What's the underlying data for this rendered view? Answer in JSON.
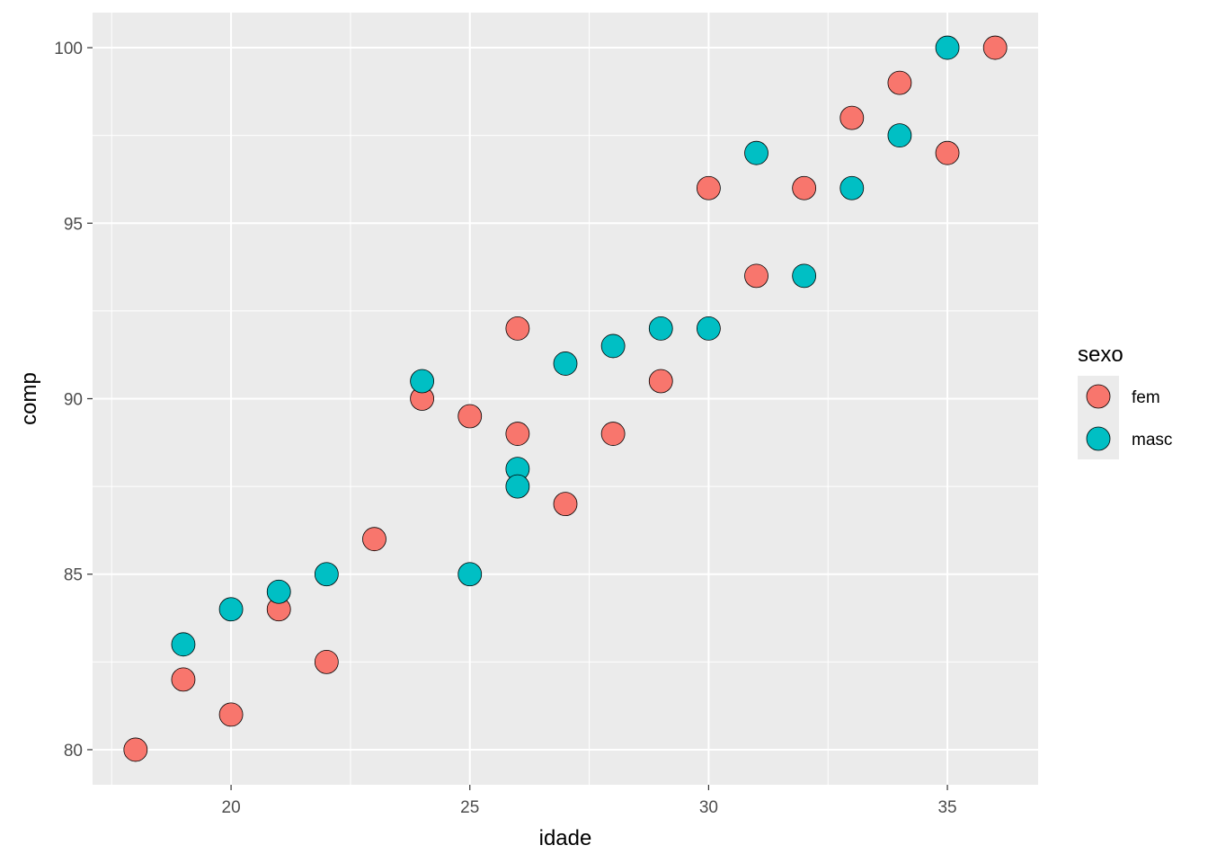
{
  "chart_data": {
    "type": "scatter",
    "title": "",
    "xlabel": "idade",
    "ylabel": "comp",
    "xlim": [
      17.1,
      36.9
    ],
    "ylim": [
      79,
      101
    ],
    "x_ticks": [
      20,
      25,
      30,
      35
    ],
    "y_ticks": [
      80,
      85,
      90,
      95,
      100
    ],
    "x_tick_labels": [
      "20",
      "25",
      "30",
      "35"
    ],
    "y_tick_labels": [
      "80",
      "85",
      "90",
      "95",
      "100"
    ],
    "grid": true,
    "legend": {
      "title": "sexo",
      "placement": "right"
    },
    "series": [
      {
        "name": "fem",
        "color": "#F8766D",
        "points": [
          {
            "x": 18,
            "y": 80
          },
          {
            "x": 19,
            "y": 82
          },
          {
            "x": 20,
            "y": 81
          },
          {
            "x": 21,
            "y": 84
          },
          {
            "x": 22,
            "y": 82.5
          },
          {
            "x": 23,
            "y": 86
          },
          {
            "x": 24,
            "y": 90
          },
          {
            "x": 25,
            "y": 89.5
          },
          {
            "x": 26,
            "y": 92
          },
          {
            "x": 26,
            "y": 89
          },
          {
            "x": 27,
            "y": 87
          },
          {
            "x": 28,
            "y": 89
          },
          {
            "x": 29,
            "y": 90.5
          },
          {
            "x": 30,
            "y": 96
          },
          {
            "x": 31,
            "y": 93.5
          },
          {
            "x": 32,
            "y": 96
          },
          {
            "x": 33,
            "y": 98
          },
          {
            "x": 34,
            "y": 99
          },
          {
            "x": 35,
            "y": 97
          },
          {
            "x": 36,
            "y": 100
          }
        ]
      },
      {
        "name": "masc",
        "color": "#00BFC4",
        "points": [
          {
            "x": 19,
            "y": 83
          },
          {
            "x": 20,
            "y": 84
          },
          {
            "x": 21,
            "y": 84.5
          },
          {
            "x": 22,
            "y": 85
          },
          {
            "x": 24,
            "y": 90.5
          },
          {
            "x": 25,
            "y": 85
          },
          {
            "x": 26,
            "y": 88
          },
          {
            "x": 26,
            "y": 87.5
          },
          {
            "x": 27,
            "y": 91
          },
          {
            "x": 28,
            "y": 91.5
          },
          {
            "x": 29,
            "y": 92
          },
          {
            "x": 30,
            "y": 92
          },
          {
            "x": 31,
            "y": 97
          },
          {
            "x": 32,
            "y": 93.5
          },
          {
            "x": 33,
            "y": 96
          },
          {
            "x": 34,
            "y": 97.5
          },
          {
            "x": 35,
            "y": 100
          }
        ]
      }
    ]
  }
}
